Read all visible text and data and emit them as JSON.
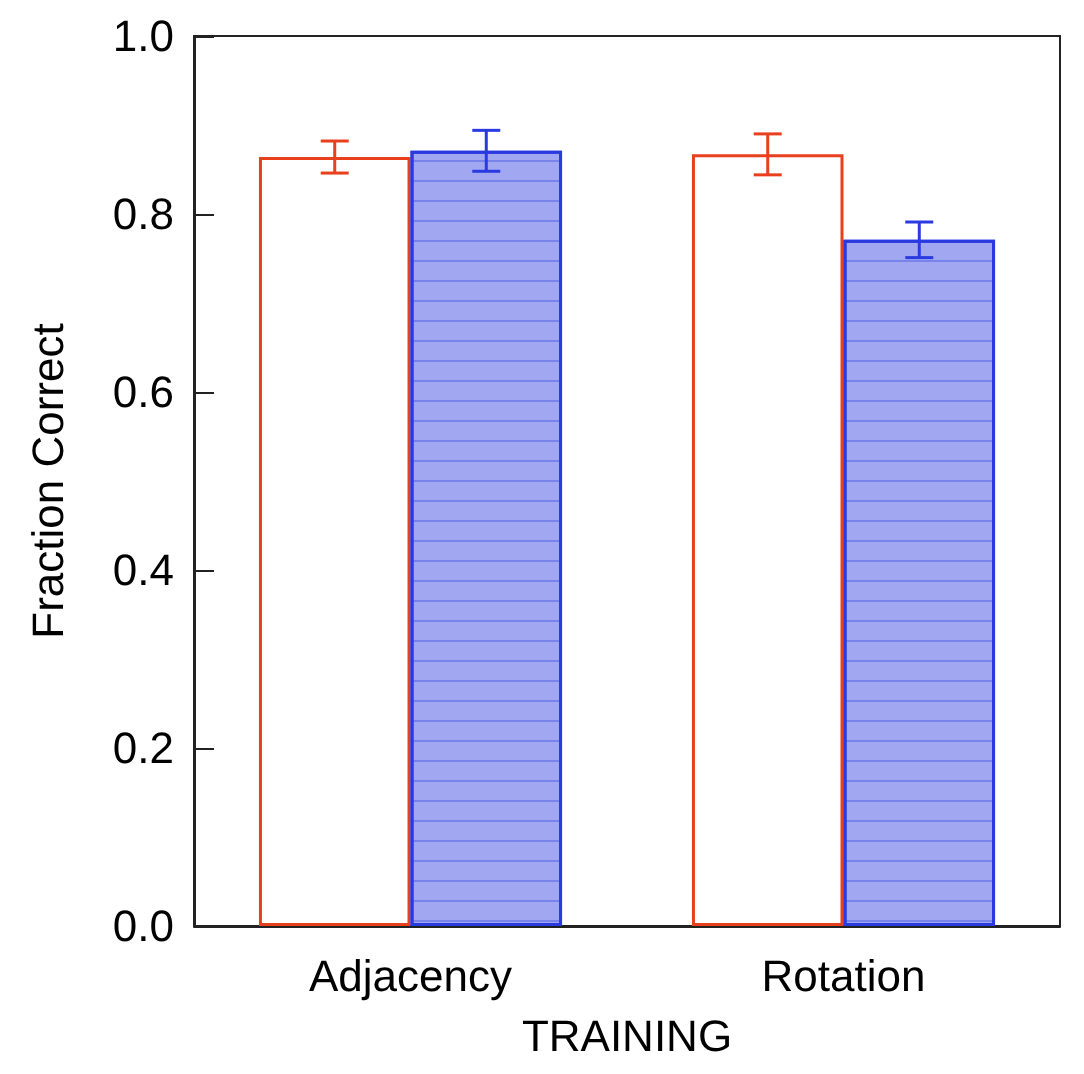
{
  "chart_data": {
    "type": "bar",
    "xlabel": "TRAINING",
    "ylabel": "Fraction Correct",
    "categories": [
      "Adjacency",
      "Rotation"
    ],
    "series": [
      {
        "color": "#e8401c",
        "values": [
          0.864,
          0.867
        ],
        "errors": [
          0.018,
          0.023
        ]
      },
      {
        "color": "#2a3ae0",
        "values": [
          0.871,
          0.771
        ],
        "errors": [
          0.023,
          0.02
        ]
      }
    ],
    "ylim": [
      0,
      1
    ],
    "yticks": [
      {
        "value": 0,
        "label": "0.0"
      },
      0.2,
      0.4,
      0.6,
      0.8,
      {
        "value": 1,
        "label": "1.0"
      }
    ],
    "grid": false
  }
}
